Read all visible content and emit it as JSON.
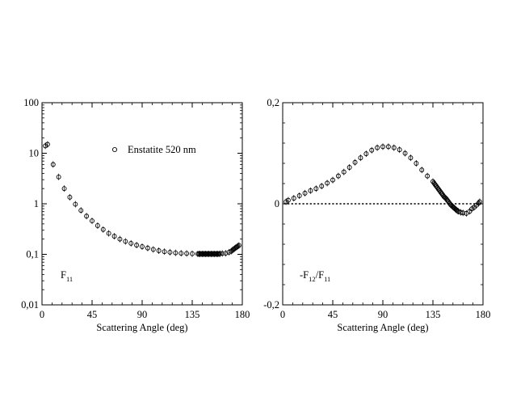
{
  "chart_data": [
    {
      "type": "scatter",
      "title": "",
      "xlabel": "Scattering Angle (deg)",
      "ylabel": "",
      "xlim": [
        0,
        180
      ],
      "ylim": [
        0.01,
        100
      ],
      "yscale": "log",
      "x_ticks": [
        "0",
        "45",
        "90",
        "135",
        "180"
      ],
      "y_ticks": [
        "0,01",
        "0,1",
        "1",
        "10",
        "100"
      ],
      "y_tick_values": [
        0.01,
        0.1,
        1,
        10,
        100
      ],
      "grid": false,
      "panel_label": {
        "main": "F",
        "sub": "11"
      },
      "legend": {
        "label": "Enstatite 520 nm",
        "marker": "circle"
      },
      "series": [
        {
          "marker": "circle",
          "x": [
            3,
            5,
            10,
            15,
            20,
            25,
            30,
            35,
            40,
            45,
            50,
            55,
            60,
            65,
            70,
            75,
            80,
            85,
            90,
            95,
            100,
            105,
            110,
            115,
            120,
            125,
            130,
            135,
            140,
            141,
            142,
            143,
            144,
            145,
            146,
            147,
            148,
            149,
            150,
            151,
            152,
            153,
            154,
            155,
            156,
            157,
            158,
            159,
            160,
            162,
            165,
            168,
            170,
            171,
            172,
            173,
            174,
            175,
            176,
            177
          ],
          "y": [
            14,
            15,
            6.0,
            3.4,
            2.0,
            1.35,
            0.98,
            0.74,
            0.57,
            0.46,
            0.37,
            0.31,
            0.26,
            0.228,
            0.2,
            0.18,
            0.165,
            0.152,
            0.142,
            0.133,
            0.125,
            0.118,
            0.113,
            0.11,
            0.107,
            0.105,
            0.104,
            0.103,
            0.102,
            0.102,
            0.102,
            0.102,
            0.102,
            0.102,
            0.102,
            0.102,
            0.102,
            0.102,
            0.102,
            0.102,
            0.102,
            0.102,
            0.102,
            0.102,
            0.102,
            0.102,
            0.102,
            0.102,
            0.103,
            0.104,
            0.105,
            0.11,
            0.115,
            0.12,
            0.125,
            0.13,
            0.135,
            0.14,
            0.145,
            0.15
          ]
        }
      ]
    },
    {
      "type": "scatter",
      "title": "",
      "xlabel": "Scattering Angle (deg)",
      "ylabel": "",
      "xlim": [
        0,
        180
      ],
      "ylim": [
        -0.2,
        0.2
      ],
      "x_ticks": [
        "0",
        "45",
        "90",
        "135",
        "180"
      ],
      "y_ticks": [
        "-0,2",
        "0",
        "0,2"
      ],
      "y_tick_values": [
        -0.2,
        0,
        0.2
      ],
      "grid": false,
      "reference_line": {
        "y": 0,
        "style": "dotted"
      },
      "panel_label": {
        "prefix": "-F",
        "sub1": "12",
        "mid": "/F",
        "sub2": "11"
      },
      "series": [
        {
          "marker": "circle",
          "x": [
            3,
            5,
            10,
            15,
            20,
            25,
            30,
            35,
            40,
            45,
            50,
            55,
            60,
            65,
            70,
            75,
            80,
            85,
            90,
            95,
            100,
            105,
            110,
            115,
            120,
            125,
            130,
            135,
            136,
            137,
            138,
            139,
            140,
            141,
            142,
            143,
            144,
            145,
            146,
            147,
            148,
            149,
            150,
            151,
            152,
            153,
            154,
            155,
            156,
            157,
            158,
            160,
            162,
            165,
            168,
            170,
            172,
            174,
            176,
            177
          ],
          "y": [
            0.004,
            0.007,
            0.011,
            0.016,
            0.021,
            0.026,
            0.03,
            0.035,
            0.041,
            0.047,
            0.055,
            0.063,
            0.072,
            0.082,
            0.091,
            0.099,
            0.106,
            0.111,
            0.113,
            0.113,
            0.111,
            0.107,
            0.1,
            0.091,
            0.08,
            0.067,
            0.055,
            0.044,
            0.041,
            0.038,
            0.035,
            0.032,
            0.029,
            0.026,
            0.023,
            0.02,
            0.017,
            0.014,
            0.012,
            0.01,
            0.007,
            0.004,
            0.001,
            -0.002,
            -0.004,
            -0.006,
            -0.008,
            -0.01,
            -0.012,
            -0.014,
            -0.015,
            -0.017,
            -0.018,
            -0.019,
            -0.015,
            -0.01,
            -0.007,
            -0.003,
            0.001,
            0.004
          ]
        }
      ]
    }
  ]
}
